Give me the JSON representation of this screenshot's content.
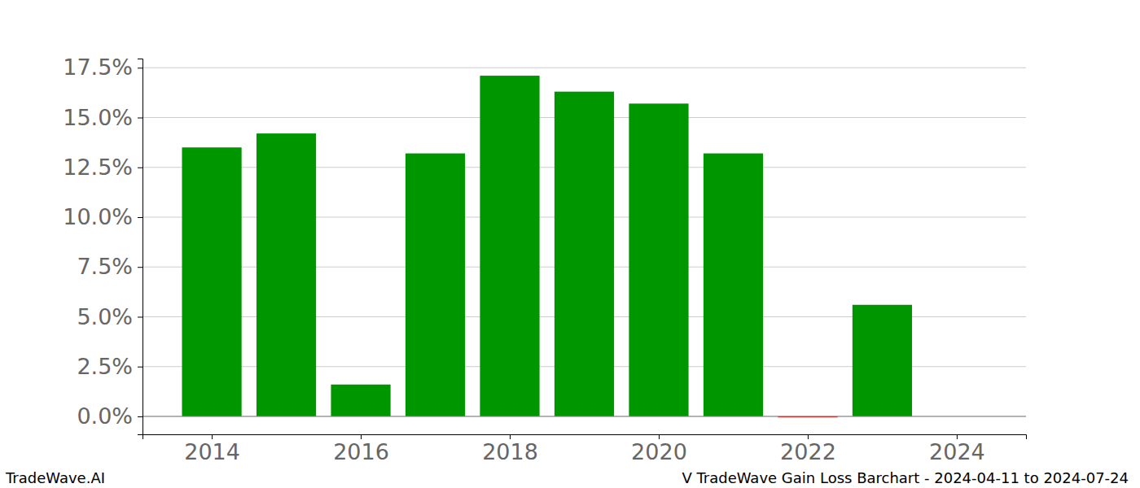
{
  "chart_data": {
    "type": "bar",
    "title": "V TradeWave Gain Loss Barchart - 2024-04-11 to 2024-07-24",
    "annotations": [
      "TradeWave.AI"
    ],
    "x": [
      2014,
      2015,
      2016,
      2017,
      2018,
      2019,
      2020,
      2021,
      2022,
      2023
    ],
    "values": [
      13.5,
      14.2,
      1.6,
      13.2,
      17.1,
      16.3,
      15.7,
      13.2,
      -0.05,
      5.6
    ],
    "colors": [
      "#009600",
      "#009600",
      "#009600",
      "#009600",
      "#009600",
      "#009600",
      "#009600",
      "#009600",
      "#ff0000",
      "#009600"
    ],
    "xlim": [
      2013.07,
      2024.93
    ],
    "xticks": [
      2014,
      2016,
      2018,
      2020,
      2022,
      2024
    ],
    "ylim": [
      -0.9,
      17.96
    ],
    "yticks": [
      {
        "value": 0,
        "label": "0.0%"
      },
      {
        "value": 2.5,
        "label": "2.5%"
      },
      {
        "value": 5,
        "label": "5.0%"
      },
      {
        "value": 7.5,
        "label": "7.5%"
      },
      {
        "value": 10,
        "label": "10.0%"
      },
      {
        "value": 12.5,
        "label": "12.5%"
      },
      {
        "value": 15,
        "label": "15.0%"
      },
      {
        "value": 17.5,
        "label": "17.5%"
      }
    ],
    "grid": true
  }
}
